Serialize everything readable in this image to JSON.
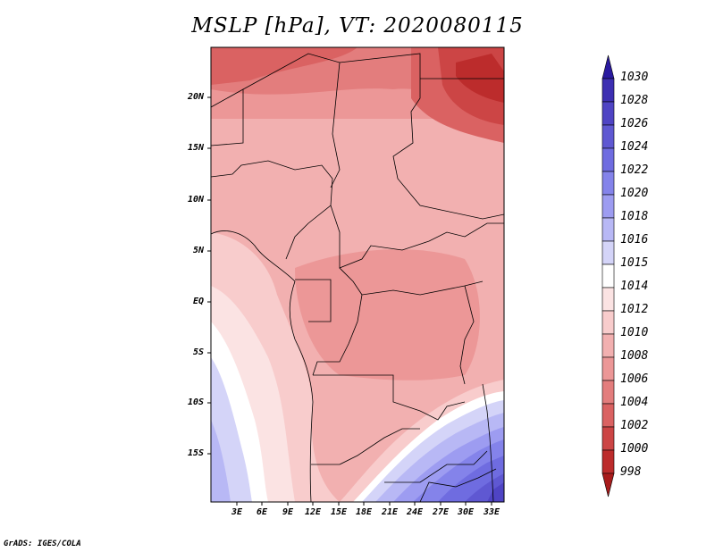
{
  "title": "MSLP [hPa], VT: 2020080115",
  "credit": "GrADS: IGES/COLA",
  "map": {
    "lon_range": [
      0,
      34.5
    ],
    "lat_range": [
      -19.5,
      24.5
    ],
    "y_ticks": [
      "20N",
      "15N",
      "10N",
      "5N",
      "EQ",
      "5S",
      "10S",
      "15S"
    ],
    "y_tick_values": [
      20,
      15,
      10,
      5,
      0,
      -5,
      -10,
      -15
    ],
    "x_ticks": [
      "3E",
      "6E",
      "9E",
      "12E",
      "15E",
      "18E",
      "21E",
      "24E",
      "27E",
      "30E",
      "33E"
    ],
    "x_tick_values": [
      3,
      6,
      9,
      12,
      15,
      18,
      21,
      24,
      27,
      30,
      33
    ]
  },
  "colorbar": {
    "labels": [
      "1030",
      "1028",
      "1026",
      "1024",
      "1022",
      "1020",
      "1018",
      "1016",
      "1015",
      "1014",
      "1012",
      "1010",
      "1008",
      "1006",
      "1004",
      "1002",
      "1000",
      "998"
    ],
    "colors": [
      "#2a1aa0",
      "#3d2fb2",
      "#4f44c4",
      "#5f58d2",
      "#6f6ce0",
      "#8483ea",
      "#9d9cf1",
      "#b8b8f5",
      "#d4d4f8",
      "#ffffff",
      "#fbe3e3",
      "#f8cccc",
      "#f2b0b0",
      "#ec9797",
      "#e37d7d",
      "#da6262",
      "#cc4545",
      "#bc2c2c",
      "#a81c1c"
    ]
  }
}
